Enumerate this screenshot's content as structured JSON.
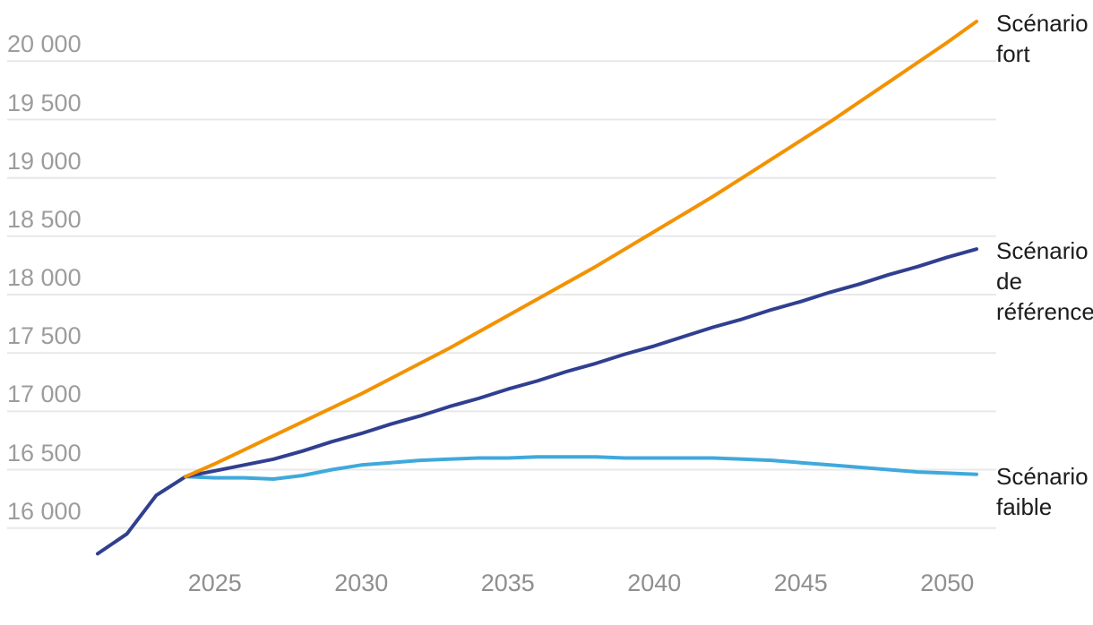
{
  "chart_data": {
    "type": "line",
    "title": "",
    "xlabel": "",
    "ylabel": "",
    "grid": true,
    "legend_position": "right-end-labels",
    "xlim": [
      2021,
      2051
    ],
    "ylim": [
      15700,
      20400
    ],
    "x": [
      2021,
      2022,
      2023,
      2024,
      2025,
      2026,
      2027,
      2028,
      2029,
      2030,
      2031,
      2032,
      2033,
      2034,
      2035,
      2036,
      2037,
      2038,
      2039,
      2040,
      2041,
      2042,
      2043,
      2044,
      2045,
      2046,
      2047,
      2048,
      2049,
      2050,
      2051
    ],
    "series": [
      {
        "name": "Scénario faible",
        "color": "#3fa9dc",
        "label_lines": [
          "Scénario",
          "faible"
        ],
        "values": [
          null,
          null,
          null,
          16440,
          16430,
          16430,
          16420,
          16450,
          16500,
          16540,
          16560,
          16580,
          16590,
          16600,
          16600,
          16610,
          16610,
          16610,
          16600,
          16600,
          16600,
          16600,
          16590,
          16580,
          16560,
          16540,
          16520,
          16500,
          16480,
          16470,
          16460
        ]
      },
      {
        "name": "Scénario de référence",
        "color": "#303f90",
        "label_lines": [
          "Scénario",
          "de",
          "référence"
        ],
        "values": [
          15780,
          15950,
          16280,
          16440,
          16490,
          16540,
          16590,
          16660,
          16740,
          16810,
          16890,
          16960,
          17040,
          17110,
          17190,
          17260,
          17340,
          17410,
          17490,
          17560,
          17640,
          17720,
          17790,
          17870,
          17940,
          18020,
          18090,
          18170,
          18240,
          18320,
          18390
        ]
      },
      {
        "name": "Scénario fort",
        "color": "#f39200",
        "label_lines": [
          "Scénario",
          "fort"
        ],
        "values": [
          null,
          null,
          null,
          16440,
          16550,
          16670,
          16790,
          16910,
          17030,
          17150,
          17280,
          17410,
          17540,
          17680,
          17820,
          17960,
          18100,
          18240,
          18390,
          18540,
          18690,
          18840,
          19000,
          19160,
          19320,
          19480,
          19650,
          19820,
          19990,
          20160,
          20340
        ]
      }
    ],
    "y_axis": {
      "tick_values": [
        16000,
        16500,
        17000,
        17500,
        18000,
        18500,
        19000,
        19500,
        20000
      ],
      "tick_labels": [
        "16 000",
        "16 500",
        "17 000",
        "17 500",
        "18 000",
        "18 500",
        "19 000",
        "19 500",
        "20 000"
      ]
    },
    "x_axis": {
      "tick_values": [
        2025,
        2030,
        2035,
        2040,
        2045,
        2050
      ],
      "tick_labels": [
        "2025",
        "2030",
        "2035",
        "2040",
        "2045",
        "2050"
      ]
    }
  },
  "colors": {
    "gridline": "#e8e8e8",
    "y_tick_text": "#9c9c9c",
    "x_tick_text": "#8f8f8f",
    "series_label_text": "#1c1c1c",
    "background": "#ffffff"
  }
}
